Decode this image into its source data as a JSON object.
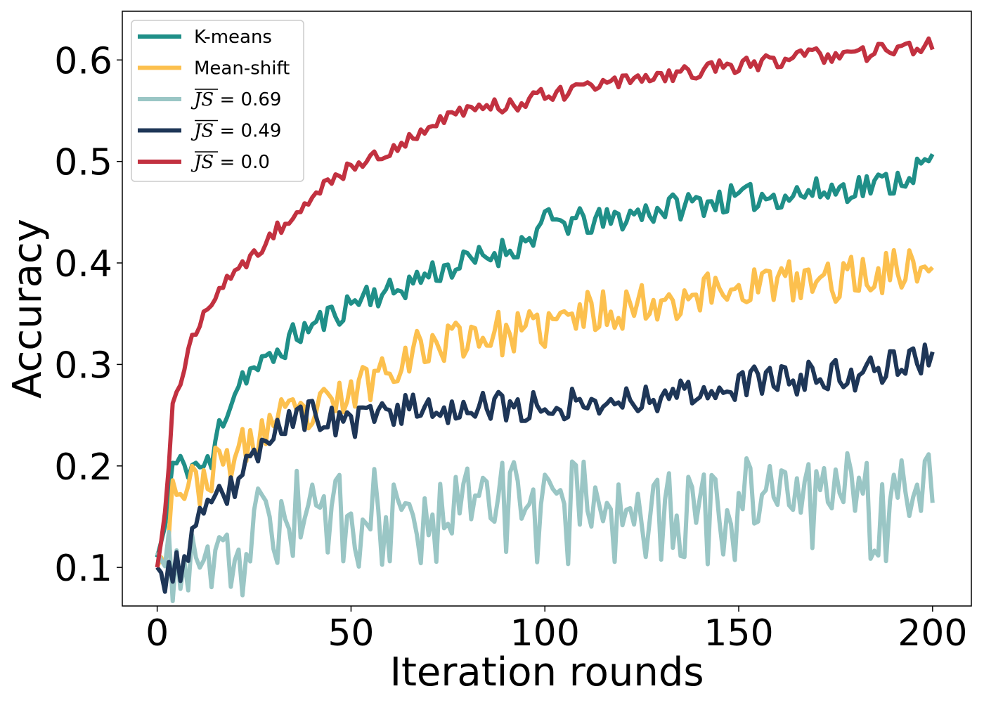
{
  "chart_data": {
    "type": "line",
    "title": "",
    "xlabel": "Iteration rounds",
    "ylabel": "Accuracy",
    "xlim": [
      -9,
      210
    ],
    "ylim": [
      0.062,
      0.648
    ],
    "xticks": [
      0,
      50,
      100,
      150,
      200
    ],
    "xtick_labels": [
      "0",
      "50",
      "100",
      "150",
      "200"
    ],
    "yticks": [
      0.1,
      0.2,
      0.3,
      0.4,
      0.5,
      0.6
    ],
    "ytick_labels": [
      "0.1",
      "0.2",
      "0.3",
      "0.4",
      "0.5",
      "0.6"
    ],
    "grid": false,
    "legend_position": "top-left",
    "series": [
      {
        "name": "K-means",
        "label_parts": [
          "K-means"
        ],
        "color": "#1f8f88",
        "anchors": [
          [
            0,
            0.11
          ],
          [
            2,
            0.14
          ],
          [
            4,
            0.2
          ],
          [
            8,
            0.2
          ],
          [
            14,
            0.2
          ],
          [
            16,
            0.24
          ],
          [
            22,
            0.29
          ],
          [
            28,
            0.3
          ],
          [
            36,
            0.33
          ],
          [
            46,
            0.35
          ],
          [
            54,
            0.37
          ],
          [
            60,
            0.37
          ],
          [
            70,
            0.39
          ],
          [
            80,
            0.4
          ],
          [
            95,
            0.42
          ],
          [
            100,
            0.44
          ],
          [
            115,
            0.44
          ],
          [
            125,
            0.45
          ],
          [
            140,
            0.46
          ],
          [
            155,
            0.465
          ],
          [
            170,
            0.47
          ],
          [
            190,
            0.48
          ],
          [
            200,
            0.5
          ]
        ],
        "noise": 0.014,
        "seed": 11
      },
      {
        "name": "Mean-shift",
        "label_parts": [
          "Mean-shift"
        ],
        "color": "#fcc04e",
        "anchors": [
          [
            0,
            0.1
          ],
          [
            2,
            0.12
          ],
          [
            4,
            0.18
          ],
          [
            10,
            0.18
          ],
          [
            16,
            0.2
          ],
          [
            24,
            0.22
          ],
          [
            30,
            0.245
          ],
          [
            40,
            0.25
          ],
          [
            50,
            0.27
          ],
          [
            56,
            0.29
          ],
          [
            64,
            0.31
          ],
          [
            80,
            0.33
          ],
          [
            95,
            0.33
          ],
          [
            110,
            0.35
          ],
          [
            125,
            0.36
          ],
          [
            140,
            0.37
          ],
          [
            155,
            0.38
          ],
          [
            170,
            0.38
          ],
          [
            185,
            0.39
          ],
          [
            200,
            0.4
          ]
        ],
        "noise": 0.022,
        "seed": 23
      },
      {
        "name": "JS = 0.69",
        "label_parts": [
          "JS",
          " = 0.69"
        ],
        "color": "#9ac6c5",
        "anchors": [
          [
            0,
            0.115
          ],
          [
            2,
            0.1
          ],
          [
            22,
            0.1
          ],
          [
            24,
            0.13
          ],
          [
            26,
            0.16
          ],
          [
            30,
            0.16
          ],
          [
            200,
            0.185
          ]
        ],
        "noise": 0.035,
        "seed": 37
      },
      {
        "name": "JS = 0.49",
        "label_parts": [
          "JS",
          " = 0.49"
        ],
        "color": "#1e3657",
        "anchors": [
          [
            0,
            0.1
          ],
          [
            2,
            0.09
          ],
          [
            4,
            0.1
          ],
          [
            6,
            0.1
          ],
          [
            10,
            0.14
          ],
          [
            16,
            0.165
          ],
          [
            24,
            0.2
          ],
          [
            30,
            0.24
          ],
          [
            40,
            0.25
          ],
          [
            50,
            0.24
          ],
          [
            60,
            0.255
          ],
          [
            70,
            0.26
          ],
          [
            80,
            0.255
          ],
          [
            100,
            0.26
          ],
          [
            120,
            0.265
          ],
          [
            140,
            0.275
          ],
          [
            160,
            0.285
          ],
          [
            180,
            0.29
          ],
          [
            200,
            0.31
          ]
        ],
        "noise": 0.016,
        "seed": 53
      },
      {
        "name": "JS = 0.0",
        "label_parts": [
          "JS",
          " = 0.0"
        ],
        "color": "#c23140",
        "anchors": [
          [
            0,
            0.1
          ],
          [
            2,
            0.15
          ],
          [
            4,
            0.26
          ],
          [
            6,
            0.28
          ],
          [
            8,
            0.32
          ],
          [
            12,
            0.345
          ],
          [
            16,
            0.37
          ],
          [
            20,
            0.39
          ],
          [
            25,
            0.41
          ],
          [
            30,
            0.43
          ],
          [
            40,
            0.465
          ],
          [
            50,
            0.495
          ],
          [
            60,
            0.51
          ],
          [
            70,
            0.535
          ],
          [
            80,
            0.55
          ],
          [
            90,
            0.555
          ],
          [
            100,
            0.565
          ],
          [
            110,
            0.57
          ],
          [
            120,
            0.58
          ],
          [
            130,
            0.585
          ],
          [
            140,
            0.59
          ],
          [
            150,
            0.595
          ],
          [
            160,
            0.6
          ],
          [
            170,
            0.605
          ],
          [
            180,
            0.605
          ],
          [
            190,
            0.61
          ],
          [
            200,
            0.615
          ]
        ],
        "noise": 0.008,
        "seed": 71
      }
    ]
  }
}
